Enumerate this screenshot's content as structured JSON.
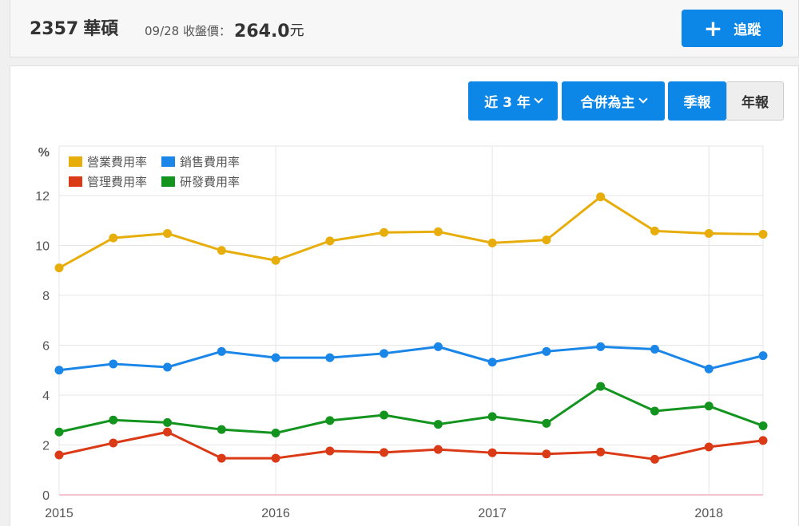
{
  "header": {
    "code": "2357",
    "name": "華碩",
    "date": "09/28",
    "close_label": "收盤價：",
    "close_price": "264.0",
    "unit": "元",
    "track_label": "追蹤"
  },
  "controls": {
    "range_label": "近 3 年",
    "basis_label": "合併為主",
    "quarterly_label": "季報",
    "annual_label": "年報"
  },
  "chart_data": {
    "type": "line",
    "y_unit": "%",
    "ylim": [
      0,
      13.5
    ],
    "yticks": [
      "0",
      "2",
      "4",
      "6",
      "8",
      "10",
      "12"
    ],
    "xticks": [
      {
        "label": "2015",
        "x": 2015.0
      },
      {
        "label": "2016",
        "x": 2016.0
      },
      {
        "label": "2017",
        "x": 2017.0
      },
      {
        "label": "2018",
        "x": 2018.0
      }
    ],
    "xlim": [
      2015.0,
      2018.25
    ],
    "x": [
      2015.0,
      2015.25,
      2015.5,
      2015.75,
      2016.0,
      2016.25,
      2016.5,
      2016.75,
      2017.0,
      2017.25,
      2017.5,
      2017.75,
      2018.0,
      2018.25
    ],
    "grid": true,
    "legend": "top-left",
    "series": [
      {
        "name": "營業費用率",
        "color": "#e7ad0a",
        "values": [
          9.1,
          10.3,
          10.48,
          9.8,
          9.4,
          10.18,
          10.52,
          10.55,
          10.1,
          10.22,
          11.95,
          10.58,
          10.48,
          10.45
        ]
      },
      {
        "name": "銷售費用率",
        "color": "#1a86e8",
        "values": [
          5.0,
          5.25,
          5.12,
          5.75,
          5.5,
          5.5,
          5.67,
          5.94,
          5.32,
          5.75,
          5.94,
          5.84,
          5.05,
          5.58
        ]
      },
      {
        "name": "管理費用率",
        "color": "#db3a16",
        "values": [
          1.6,
          2.08,
          2.52,
          1.47,
          1.47,
          1.76,
          1.7,
          1.82,
          1.69,
          1.64,
          1.72,
          1.43,
          1.92,
          2.18
        ]
      },
      {
        "name": "研發費用率",
        "color": "#13941f",
        "values": [
          2.52,
          3.0,
          2.9,
          2.62,
          2.48,
          2.98,
          3.2,
          2.83,
          3.14,
          2.87,
          4.35,
          3.36,
          3.56,
          2.77
        ]
      }
    ]
  }
}
